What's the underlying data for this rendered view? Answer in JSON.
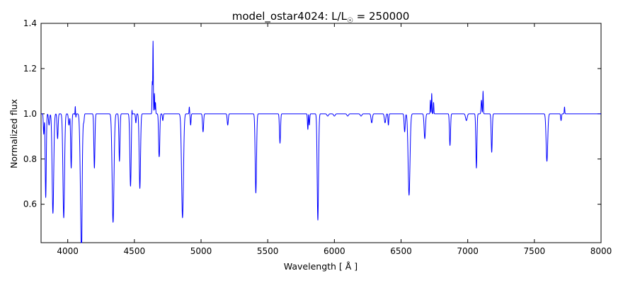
{
  "chart_data": {
    "type": "line",
    "title_main": "model_ostar4024: L/L",
    "title_sub": "☉",
    "title_value": " = 250000",
    "xlabel": "Wavelength [ Å ]",
    "ylabel": "Normalized flux",
    "xlim": [
      3800,
      8000
    ],
    "ylim": [
      0.43,
      1.4
    ],
    "xticks": [
      4000,
      4500,
      5000,
      5500,
      6000,
      6500,
      7000,
      7500,
      8000
    ],
    "yticks": [
      0.6,
      0.8,
      1.0,
      1.2,
      1.4
    ],
    "grid": false,
    "legend": "none",
    "series": [
      {
        "color": "#0000ff",
        "continuum": 1.0,
        "absorption_lines": [
          [
            3820,
            0.91,
            3
          ],
          [
            3835,
            0.63,
            4
          ],
          [
            3860,
            0.95,
            4
          ],
          [
            3889,
            0.56,
            6
          ],
          [
            3924,
            0.89,
            4
          ],
          [
            3970,
            0.54,
            6
          ],
          [
            4009,
            0.95,
            4
          ],
          [
            4026,
            0.76,
            4
          ],
          [
            4058,
            0.96,
            3
          ],
          [
            4101,
            0.52,
            7
          ],
          [
            4104,
            0.77,
            3
          ],
          [
            4121,
            0.97,
            3
          ],
          [
            4200,
            0.76,
            4
          ],
          [
            4340,
            0.52,
            7
          ],
          [
            4388,
            0.79,
            4
          ],
          [
            4471,
            0.68,
            5
          ],
          [
            4511,
            0.96,
            3
          ],
          [
            4541,
            0.67,
            5
          ],
          [
            4686,
            0.77,
            4
          ],
          [
            4713,
            0.97,
            3
          ],
          [
            4861,
            0.54,
            7
          ],
          [
            4922,
            0.95,
            3
          ],
          [
            5015,
            0.92,
            4
          ],
          [
            5200,
            0.95,
            4
          ],
          [
            5411,
            0.65,
            5
          ],
          [
            5592,
            0.87,
            4
          ],
          [
            5801,
            0.93,
            3
          ],
          [
            5812,
            0.95,
            3
          ],
          [
            5876,
            0.53,
            5
          ],
          [
            5950,
            0.99,
            6
          ],
          [
            6000,
            0.99,
            6
          ],
          [
            6100,
            0.99,
            6
          ],
          [
            6200,
            0.99,
            6
          ],
          [
            6280,
            0.96,
            5
          ],
          [
            6380,
            0.96,
            5
          ],
          [
            6405,
            0.95,
            3
          ],
          [
            6527,
            0.92,
            4
          ],
          [
            6560,
            0.64,
            7
          ],
          [
            6678,
            0.89,
            5
          ],
          [
            6867,
            0.86,
            4
          ],
          [
            6990,
            0.97,
            6
          ],
          [
            7065,
            0.76,
            4
          ],
          [
            7180,
            0.83,
            4
          ],
          [
            7594,
            0.79,
            6
          ],
          [
            7700,
            0.97,
            3
          ]
        ],
        "emission_lines": [
          [
            4057,
            1.07,
            2
          ],
          [
            4481,
            1.05,
            2
          ],
          [
            4634,
            1.14,
            2
          ],
          [
            4640,
            1.32,
            2
          ],
          [
            4650,
            1.09,
            2
          ],
          [
            4658,
            1.05,
            2
          ],
          [
            4686,
            1.04,
            2
          ],
          [
            4912,
            1.03,
            2
          ],
          [
            5806,
            1.02,
            2
          ],
          [
            6720,
            1.06,
            2
          ],
          [
            6730,
            1.09,
            2
          ],
          [
            6744,
            1.05,
            2
          ],
          [
            7103,
            1.06,
            3
          ],
          [
            7115,
            1.1,
            2
          ],
          [
            7726,
            1.03,
            2
          ]
        ]
      }
    ]
  }
}
